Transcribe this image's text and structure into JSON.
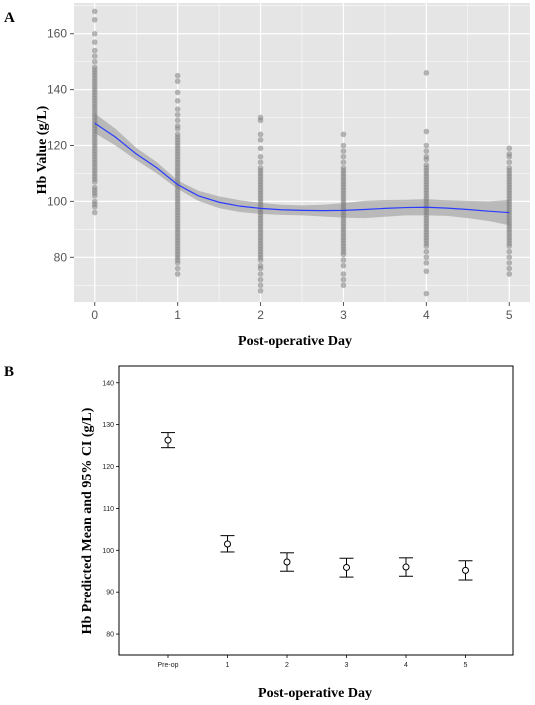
{
  "panels": {
    "a": {
      "letter": "A",
      "xlabel": "Post-operative Day",
      "ylabel": "Hb Value (g/L)",
      "x_ticks": [
        "0",
        "1",
        "2",
        "3",
        "4",
        "5"
      ],
      "y_ticks": [
        "80",
        "100",
        "120",
        "140",
        "160"
      ]
    },
    "b": {
      "letter": "B",
      "xlabel": "Post-operative Day",
      "ylabel": "Hb Predicted Mean and 95% CI (g/L)",
      "x_ticks": [
        "Pre-op",
        "1",
        "2",
        "3",
        "4",
        "5"
      ],
      "y_ticks": [
        "80",
        "90",
        "100",
        "110",
        "120",
        "130",
        "140"
      ]
    }
  },
  "colors": {
    "panel_bg": "#e5e5e5",
    "gridline": "#ffffff",
    "points": "#7f7f7f",
    "ribbon": "#a9a9a9",
    "smooth_line": "#2b3cff",
    "errorbar": "#000000"
  },
  "chart_data": [
    {
      "type": "scatter",
      "title": "",
      "xlabel": "Post-operative Day",
      "ylabel": "Hb Value (g/L)",
      "xlim": [
        -0.25,
        5.25
      ],
      "ylim": [
        64,
        171
      ],
      "grid": true,
      "series": [
        {
          "name": "",
          "kind": "points",
          "groups": [
            {
              "x": 0,
              "y": [
                168,
                165,
                160,
                157,
                154,
                152,
                150,
                148,
                147,
                146,
                145,
                144,
                143,
                142,
                141,
                140,
                139,
                138,
                137,
                136,
                135,
                134,
                133,
                132,
                131,
                130,
                129,
                128,
                127,
                126,
                125,
                124,
                123,
                122,
                121,
                120,
                119,
                118,
                117,
                116,
                115,
                114,
                113,
                112,
                111,
                110,
                109,
                108,
                107,
                105,
                104,
                103,
                102,
                100,
                99,
                98,
                96
              ]
            },
            {
              "x": 1,
              "y": [
                145,
                143,
                139,
                136,
                133,
                131,
                129,
                127,
                126,
                124,
                123,
                122,
                121,
                120,
                119,
                118,
                117,
                116,
                115,
                114,
                113,
                112,
                111,
                110,
                109,
                108,
                107,
                106,
                105,
                104,
                103,
                102,
                101,
                100,
                99,
                98,
                97,
                96,
                95,
                94,
                93,
                92,
                91,
                90,
                89,
                88,
                87,
                86,
                85,
                84,
                83,
                82,
                81,
                80,
                79,
                78,
                76,
                74
              ]
            },
            {
              "x": 2,
              "y": [
                130,
                129,
                124,
                122,
                119,
                116,
                114,
                112,
                111,
                110,
                109,
                108,
                107,
                106,
                105,
                104,
                103,
                102,
                101,
                100,
                99,
                98,
                97,
                96,
                95,
                94,
                93,
                92,
                91,
                90,
                89,
                88,
                87,
                86,
                85,
                84,
                83,
                82,
                81,
                80,
                79,
                77,
                76,
                74,
                72,
                70,
                68
              ]
            },
            {
              "x": 3,
              "y": [
                124,
                120,
                118,
                116,
                114,
                112,
                111,
                110,
                109,
                108,
                107,
                106,
                105,
                104,
                103,
                102,
                101,
                100,
                99,
                98,
                97,
                96,
                95,
                94,
                93,
                92,
                91,
                90,
                89,
                88,
                87,
                86,
                85,
                84,
                83,
                82,
                81,
                79,
                77,
                74,
                72,
                70
              ]
            },
            {
              "x": 4,
              "y": [
                146,
                125,
                120,
                118,
                116,
                115,
                113,
                112,
                111,
                110,
                109,
                108,
                107,
                106,
                105,
                104,
                103,
                102,
                101,
                100,
                99,
                98,
                97,
                96,
                95,
                94,
                93,
                92,
                91,
                90,
                89,
                88,
                87,
                86,
                85,
                84,
                82,
                80,
                78,
                75,
                67
              ]
            },
            {
              "x": 5,
              "y": [
                119,
                117,
                116,
                114,
                112,
                111,
                110,
                109,
                108,
                107,
                106,
                105,
                104,
                103,
                102,
                101,
                100,
                99,
                98,
                97,
                96,
                95,
                94,
                93,
                92,
                91,
                90,
                89,
                88,
                87,
                86,
                85,
                84,
                82,
                80,
                78,
                76,
                74
              ]
            }
          ]
        },
        {
          "name": "",
          "kind": "smooth",
          "x": [
            0,
            0.25,
            0.5,
            0.75,
            1,
            1.25,
            1.5,
            1.75,
            2,
            2.25,
            2.5,
            2.75,
            3,
            3.25,
            3.5,
            3.75,
            4,
            4.25,
            4.5,
            4.75,
            5
          ],
          "y": [
            128,
            123,
            117,
            112,
            106,
            102,
            99.7,
            98.3,
            97.5,
            97,
            96.8,
            96.7,
            96.8,
            97.1,
            97.5,
            97.8,
            97.9,
            97.6,
            97.1,
            96.5,
            96
          ],
          "lower": [
            124.5,
            120,
            114.8,
            110,
            104.5,
            100.2,
            97.6,
            96.2,
            95.5,
            95.2,
            95,
            94.6,
            94.2,
            94,
            94.5,
            95,
            95,
            94.8,
            94,
            93,
            91.5
          ],
          "upper": [
            131.5,
            126,
            119.2,
            114,
            107.5,
            103.8,
            101.8,
            100.4,
            99.5,
            98.8,
            98.6,
            98.8,
            99.4,
            100.2,
            100.5,
            100.6,
            100.8,
            100.4,
            100.2,
            100,
            100.5
          ]
        }
      ]
    },
    {
      "type": "scatter",
      "title": "",
      "xlabel": "Post-operative Day",
      "ylabel": "Hb Predicted Mean and 95% CI (g/L)",
      "categories": [
        "Pre-op",
        "1",
        "2",
        "3",
        "4",
        "5"
      ],
      "ylim": [
        75,
        144
      ],
      "grid": false,
      "series": [
        {
          "name": "",
          "mean": [
            126.3,
            101.5,
            97.2,
            95.9,
            96.0,
            95.2
          ],
          "lower": [
            124.5,
            99.6,
            95.0,
            93.6,
            93.8,
            92.9
          ],
          "upper": [
            128.1,
            103.5,
            99.4,
            98.1,
            98.2,
            97.5
          ]
        }
      ]
    }
  ]
}
